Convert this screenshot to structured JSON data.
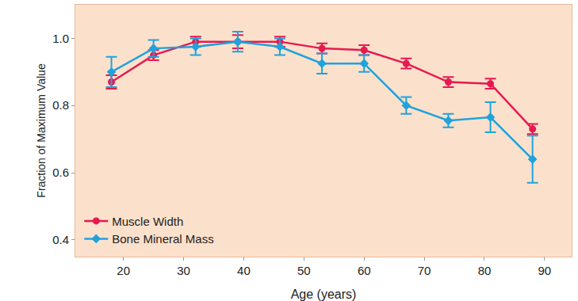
{
  "chart_data": {
    "type": "line",
    "x_label": "Age (years)",
    "y_label": "Fraction of Maximum Value",
    "xlim": [
      12,
      94.5
    ],
    "xticks": [
      20,
      30,
      40,
      50,
      60,
      70,
      80,
      90
    ],
    "ylim": [
      0.35,
      1.1
    ],
    "yticks": [
      {
        "value": 0.4,
        "label": "0.4"
      },
      {
        "value": 0.6,
        "label": "0.6"
      },
      {
        "value": 0.8,
        "label": "0.8"
      },
      {
        "value": 1,
        "label": "1.0"
      }
    ],
    "grid": false,
    "legend": "lower left",
    "x": [
      18,
      25,
      32,
      39,
      46,
      53,
      60,
      67,
      74,
      81,
      88
    ],
    "series": [
      {
        "name": "Muscle Width",
        "color": "#e8194f",
        "marker": "circle",
        "values": [
          0.87,
          0.95,
          0.99,
          0.99,
          0.99,
          0.97,
          0.965,
          0.925,
          0.87,
          0.865,
          0.73
        ],
        "errors": [
          0.02,
          0.015,
          0.015,
          0.02,
          0.015,
          0.015,
          0.015,
          0.015,
          0.015,
          0.015,
          0.015
        ]
      },
      {
        "name": "Bone Mineral Mass",
        "color": "#1fa3dc",
        "marker": "diamond",
        "values": [
          0.9,
          0.97,
          0.975,
          0.99,
          0.975,
          0.925,
          0.925,
          0.8,
          0.755,
          0.765,
          0.64
        ],
        "errors": [
          0.045,
          0.025,
          0.025,
          0.03,
          0.025,
          0.03,
          0.025,
          0.025,
          0.02,
          0.045,
          0.07
        ]
      }
    ]
  }
}
